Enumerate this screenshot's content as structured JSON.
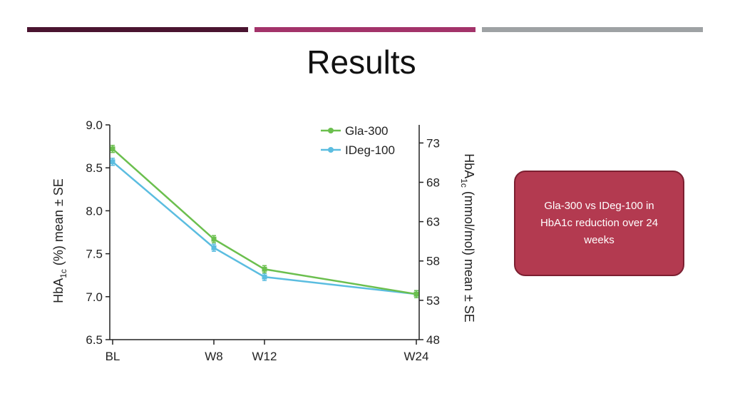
{
  "slide": {
    "title": "Results",
    "bar_colors": [
      "#4a1430",
      "#a3336a",
      "#9ea2a4"
    ]
  },
  "callout": {
    "text": "Gla-300 vs IDeg-100 in HbA1c reduction over 24 weeks",
    "background": "#b33a50",
    "border": "#7c1f31"
  },
  "chart_data": {
    "type": "line",
    "x": [
      "BL",
      "W8",
      "W12",
      "W24"
    ],
    "x_weeks": [
      0,
      8,
      12,
      24
    ],
    "series": [
      {
        "name": "Gla-300",
        "color": "#6bbf4e",
        "values": [
          8.72,
          7.67,
          7.32,
          7.03
        ]
      },
      {
        "name": "IDeg-100",
        "color": "#5bbde0",
        "values": [
          8.57,
          7.57,
          7.23,
          7.03
        ]
      }
    ],
    "ylim": [
      6.5,
      9.0
    ],
    "yticks": [
      "9.0",
      "8.5",
      "8.0",
      "7.5",
      "7.0",
      "6.5"
    ],
    "ylabel_left": {
      "base": "HbA",
      "sub": "1c",
      "rest": " (%) mean ± SE"
    },
    "y2lim": [
      48,
      75.3
    ],
    "y2ticks": [
      "73",
      "68",
      "63",
      "58",
      "53",
      "48"
    ],
    "ylabel_right": {
      "base": "HbA",
      "sub": "1c",
      "rest": " (mmol/mol) mean ± SE"
    },
    "legend_position": "top-right",
    "grid": false
  }
}
